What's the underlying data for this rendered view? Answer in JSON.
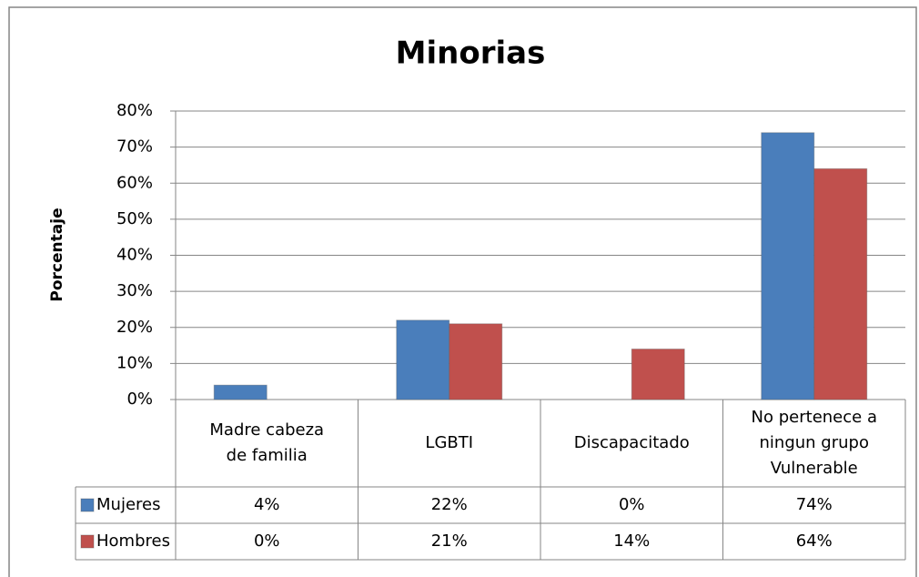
{
  "chart_data": {
    "type": "bar",
    "title": "Minorias",
    "y_label": "Porcentaje",
    "categories": [
      "Madre cabeza de familia",
      "LGBTI",
      "Discapacitado",
      "No pertenece a ningun grupo Vulnerable"
    ],
    "series": [
      {
        "name": "Mujeres",
        "color": "#4a7ebb",
        "values": [
          4,
          22,
          0,
          74
        ],
        "value_labels": [
          "4%",
          "22%",
          "0%",
          "74%"
        ]
      },
      {
        "name": "Hombres",
        "color": "#c0504d",
        "values": [
          0,
          21,
          14,
          64
        ],
        "value_labels": [
          "0%",
          "21%",
          "14%",
          "64%"
        ]
      }
    ],
    "ylim": [
      0,
      80
    ],
    "yticks": [
      {
        "value": 0,
        "label": "0%"
      },
      {
        "value": 10,
        "label": "10%"
      },
      {
        "value": 20,
        "label": "20%"
      },
      {
        "value": 30,
        "label": "30%"
      },
      {
        "value": 40,
        "label": "40%"
      },
      {
        "value": 50,
        "label": "50%"
      },
      {
        "value": 60,
        "label": "60%"
      },
      {
        "value": 70,
        "label": "70%"
      },
      {
        "value": 80,
        "label": "80%"
      }
    ],
    "grid": true
  }
}
